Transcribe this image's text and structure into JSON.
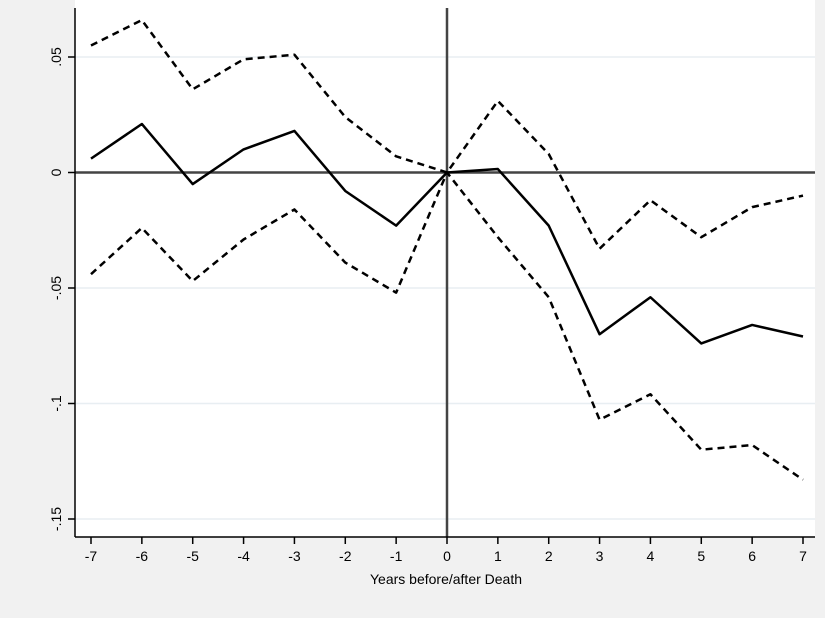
{
  "chart_data": {
    "type": "line",
    "title": "",
    "xlabel": "Years before/after Death",
    "ylabel": "",
    "x": [
      -7,
      -6,
      -5,
      -4,
      -3,
      -2,
      -1,
      0,
      1,
      2,
      3,
      4,
      5,
      6,
      7
    ],
    "xlim": [
      -7,
      7
    ],
    "ylim": [
      -0.15,
      0.05
    ],
    "x_ticks": [
      -7,
      -6,
      -5,
      -4,
      -3,
      -2,
      -1,
      0,
      1,
      2,
      3,
      4,
      5,
      6,
      7
    ],
    "x_tick_labels": [
      "-7",
      "-6",
      "-5",
      "-4",
      "-3",
      "-2",
      "-1",
      "0",
      "1",
      "2",
      "3",
      "4",
      "5",
      "6",
      "7"
    ],
    "y_ticks": [
      0.05,
      0,
      -0.05,
      -0.1,
      -0.15
    ],
    "y_tick_labels": [
      ".05",
      "0",
      "-.05",
      "-.1",
      "-.15"
    ],
    "grid": true,
    "reference_lines": {
      "x": 0,
      "y": 0
    },
    "series": [
      {
        "style": "solid",
        "values": [
          0.006,
          0.021,
          -0.005,
          0.01,
          0.018,
          -0.008,
          -0.023,
          0.0,
          0.0015,
          -0.023,
          -0.07,
          -0.054,
          -0.074,
          -0.066,
          -0.071
        ]
      },
      {
        "style": "dashed",
        "values": [
          0.055,
          0.066,
          0.036,
          0.049,
          0.051,
          0.024,
          0.007,
          0.0,
          0.031,
          0.008,
          -0.033,
          -0.012,
          -0.028,
          -0.015,
          -0.01
        ]
      },
      {
        "style": "dashed",
        "values": [
          -0.044,
          -0.024,
          -0.047,
          -0.029,
          -0.016,
          -0.039,
          -0.052,
          0.0,
          -0.028,
          -0.054,
          -0.107,
          -0.096,
          -0.12,
          -0.118,
          -0.133
        ]
      }
    ],
    "colors": {
      "background": "#f1f1f1",
      "plot_background": "#ffffff",
      "gridline": "#e8eef2",
      "line": "#000000",
      "reference_line": "#444444"
    }
  }
}
